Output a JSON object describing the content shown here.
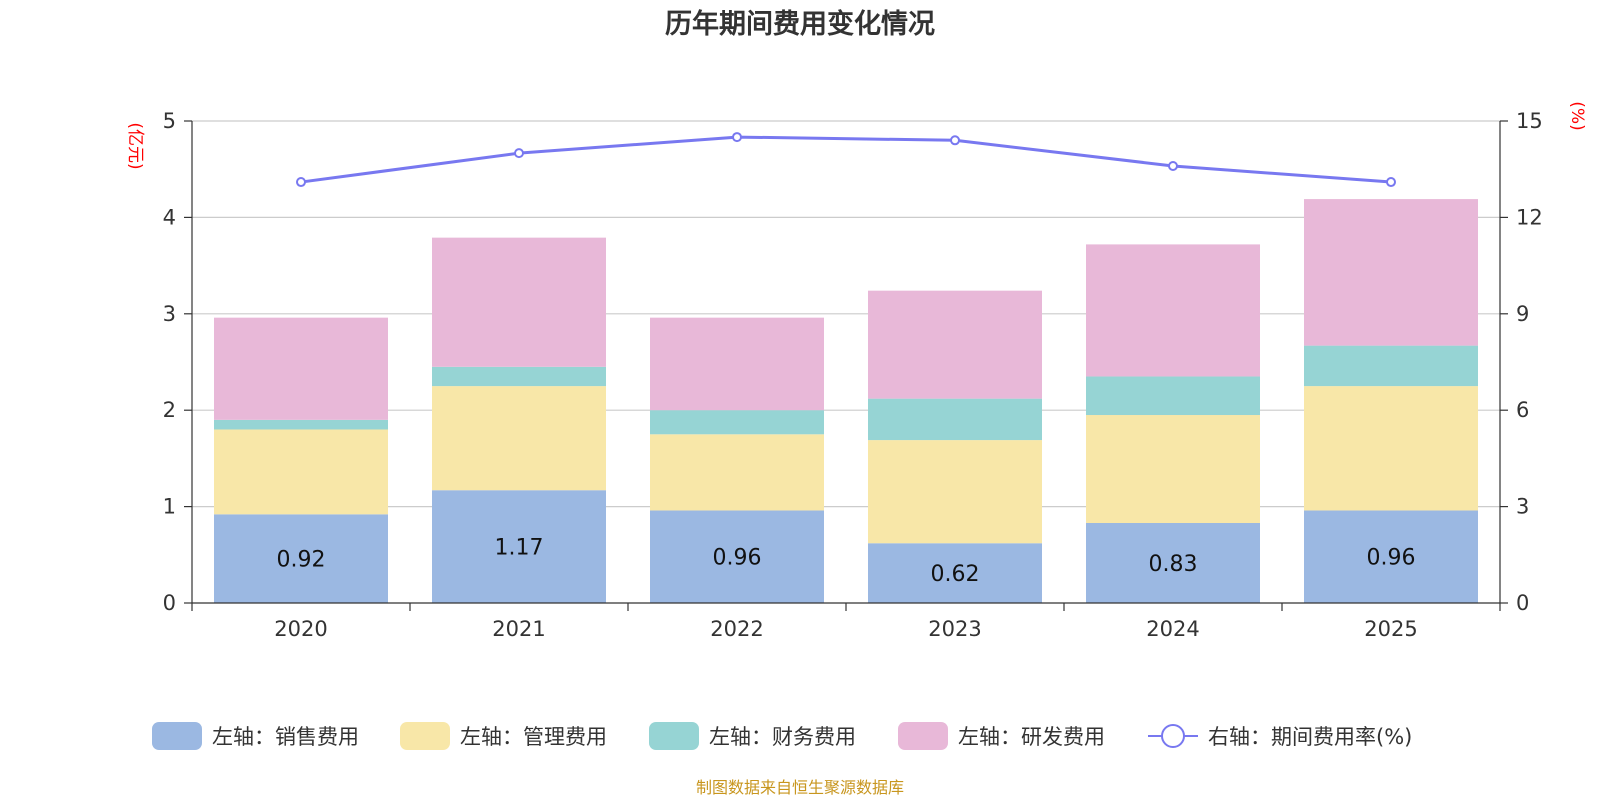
{
  "chart_data": {
    "type": "bar",
    "title": "历年期间费用变化情况",
    "categories": [
      "2020",
      "2021",
      "2022",
      "2023",
      "2024",
      "2025"
    ],
    "left_axis": {
      "unit": "(亿元)",
      "ylim": [
        0,
        5
      ],
      "ticks": [
        "0",
        "1",
        "2",
        "3",
        "4",
        "5"
      ]
    },
    "right_axis": {
      "unit": "(%)",
      "ylim": [
        0,
        15
      ],
      "ticks": [
        "0",
        "3",
        "6",
        "9",
        "12",
        "15"
      ]
    },
    "series": [
      {
        "name": "左轴：销售费用",
        "axis": "left",
        "stack": true,
        "color": "#9bb8e2",
        "values": [
          0.92,
          1.17,
          0.96,
          0.62,
          0.83,
          0.96
        ],
        "labels": [
          "0.92",
          "1.17",
          "0.96",
          "0.62",
          "0.83",
          "0.96"
        ]
      },
      {
        "name": "左轴：管理费用",
        "axis": "left",
        "stack": true,
        "color": "#f8e7a8",
        "values": [
          0.88,
          1.08,
          0.79,
          1.07,
          1.12,
          1.29
        ]
      },
      {
        "name": "左轴：财务费用",
        "axis": "left",
        "stack": true,
        "color": "#96d4d4",
        "values": [
          0.1,
          0.2,
          0.25,
          0.43,
          0.4,
          0.42
        ]
      },
      {
        "name": "左轴：研发费用",
        "axis": "left",
        "stack": true,
        "color": "#e8b8d8",
        "values": [
          1.06,
          1.34,
          0.96,
          1.12,
          1.37,
          1.52
        ]
      },
      {
        "name": "右轴：期间费用率(%)",
        "axis": "right",
        "type": "line",
        "color": "#7878f0",
        "values": [
          13.1,
          14.0,
          14.5,
          14.4,
          13.6,
          13.1
        ]
      }
    ],
    "source": "制图数据来自恒生聚源数据库"
  }
}
